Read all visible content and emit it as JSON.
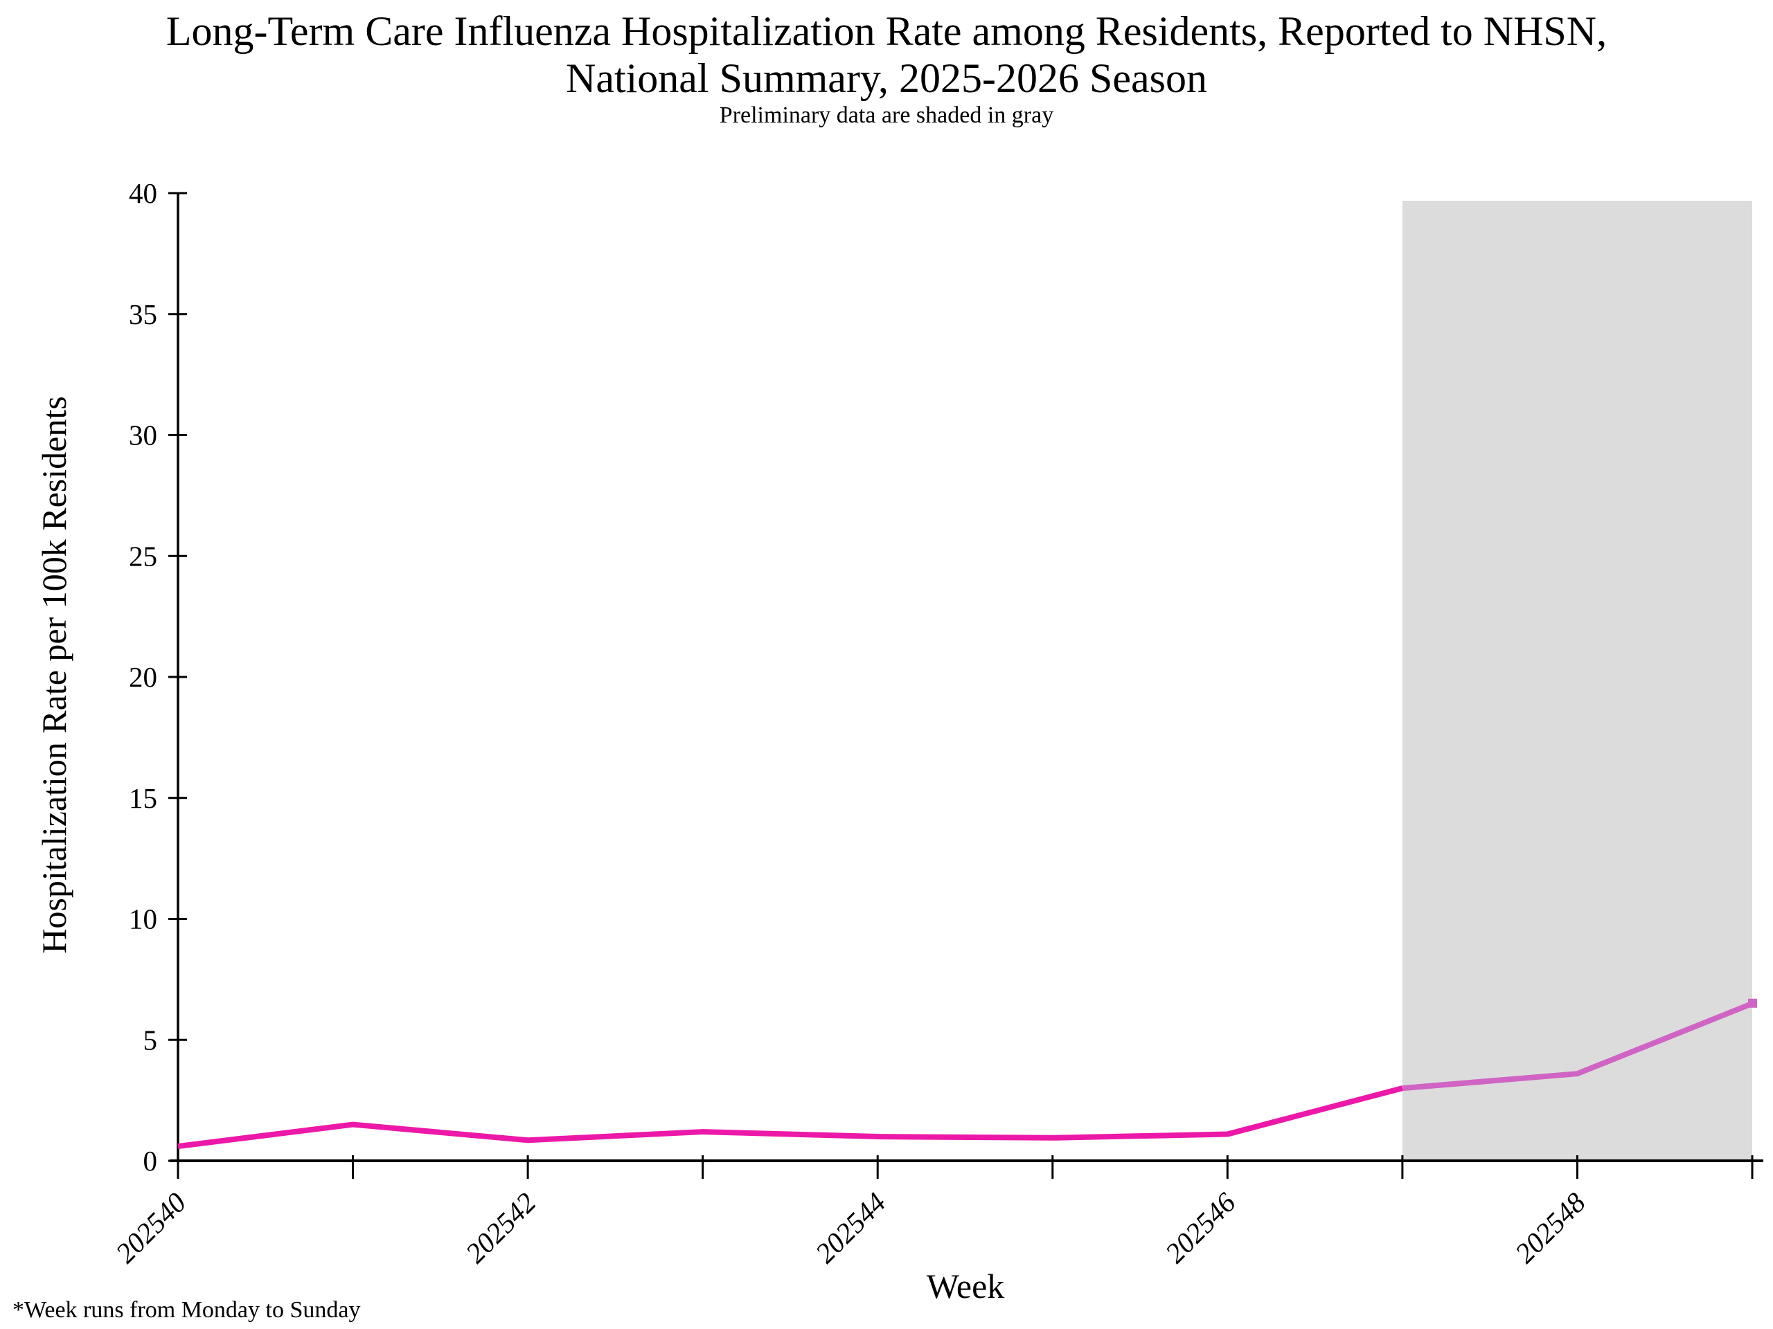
{
  "figure": {
    "title_line1": "Long-Term Care Influenza Hospitalization Rate among Residents, Reported to NHSN,",
    "title_line2": "National Summary, 2025-2026 Season",
    "subtitle": "Preliminary data are shaded in gray",
    "footnote": "*Week runs from Monday to Sunday"
  },
  "chart_data": {
    "type": "line",
    "x": [
      202540,
      202541,
      202542,
      202543,
      202544,
      202545,
      202546,
      202547,
      202548,
      202549
    ],
    "series": [
      {
        "name": "Hospitalization Rate per 100k Residents",
        "values": [
          0.6,
          1.5,
          0.85,
          1.2,
          1.0,
          0.95,
          1.1,
          3.0,
          3.6,
          6.5
        ]
      }
    ],
    "title": "Long-Term Care Influenza Hospitalization Rate among Residents, Reported to NHSN, National Summary, 2025-2026 Season",
    "subtitle": "Preliminary data are shaded in gray",
    "xlabel": "Week",
    "ylabel": "Hospitalization Rate per 100k Residents",
    "ylim": [
      0,
      40
    ],
    "yticks": [
      0,
      5,
      10,
      15,
      20,
      25,
      30,
      35,
      40
    ],
    "xtick_labels": [
      "202540",
      "202542",
      "202544",
      "202546",
      "202548"
    ],
    "grid": false,
    "legend_position": "none",
    "preliminary": {
      "start_week": 202547,
      "end_week": 202549,
      "description": "Preliminary data are shaded in gray"
    },
    "colors": {
      "line": "#EC19A8",
      "preliminary_line": "#D064C4",
      "shade": "#DCDCDC",
      "axis": "#000000"
    }
  }
}
